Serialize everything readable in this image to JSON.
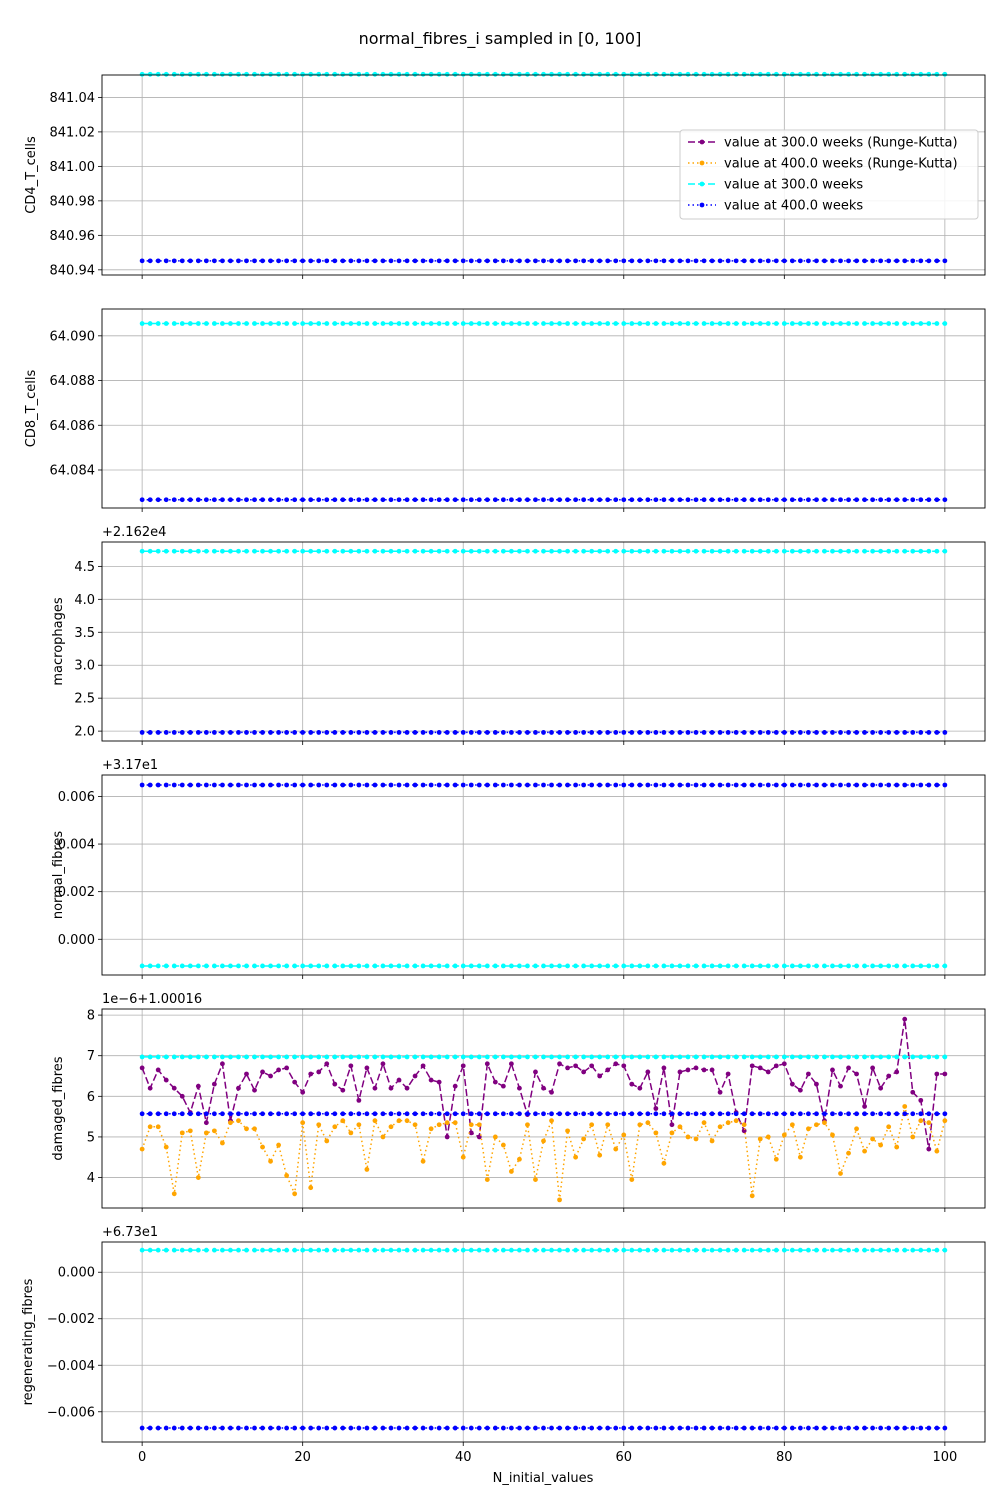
{
  "chart_data": {
    "type": "line",
    "title": "normal_fibres_i sampled in [0, 100]",
    "xlabel": "N_initial_values",
    "xlim": [
      -5,
      105
    ],
    "x_ticks": [
      0,
      20,
      40,
      60,
      80,
      100
    ],
    "x_tick_labels": [
      "0",
      "20",
      "40",
      "60",
      "80",
      "100"
    ],
    "x_points": {
      "start": 0,
      "end": 100,
      "count": 101
    },
    "grid": true,
    "legend": {
      "placement": "upper-right of first panel",
      "entries": [
        {
          "label": "value at 300.0 weeks (Runge-Kutta)",
          "color": "#800080",
          "dash": "dashed",
          "marker": "circle"
        },
        {
          "label": "value at 400.0 weeks (Runge-Kutta)",
          "color": "#ffa500",
          "dash": "dotted",
          "marker": "circle"
        },
        {
          "label": "value at 300.0 weeks",
          "color": "#00ffff",
          "dash": "dashed",
          "marker": "circle"
        },
        {
          "label": "value at 400.0 weeks",
          "color": "#0000ff",
          "dash": "dotted",
          "marker": "circle"
        }
      ]
    },
    "panels": [
      {
        "ylabel": "CD4_T_cells",
        "offset": "",
        "ylim": [
          840.937,
          841.053
        ],
        "y_ticks": [
          840.94,
          840.96,
          840.98,
          841.0,
          841.02,
          841.04
        ],
        "y_tick_labels": [
          "840.94",
          "840.96",
          "840.98",
          "841.00",
          "841.02",
          "841.04"
        ],
        "series": [
          {
            "color": "#00ffff",
            "dash": "dashed",
            "constant": 841.0534
          },
          {
            "color": "#0000ff",
            "dash": "dotted",
            "constant": 840.9452
          }
        ]
      },
      {
        "ylabel": "CD8_T_cells",
        "offset": "",
        "ylim": [
          64.0823,
          64.0912
        ],
        "y_ticks": [
          64.084,
          64.086,
          64.088,
          64.09
        ],
        "y_tick_labels": [
          "64.084",
          "64.086",
          "64.088",
          "64.090"
        ],
        "series": [
          {
            "color": "#00ffff",
            "dash": "dashed",
            "constant": 64.09055
          },
          {
            "color": "#0000ff",
            "dash": "dotted",
            "constant": 64.08267
          }
        ]
      },
      {
        "ylabel": "macrophages",
        "offset": "+2.162e4",
        "ylim": [
          1.85,
          4.87
        ],
        "y_ticks": [
          2.0,
          2.5,
          3.0,
          3.5,
          4.0,
          4.5
        ],
        "y_tick_labels": [
          "2.0",
          "2.5",
          "3.0",
          "3.5",
          "4.0",
          "4.5"
        ],
        "series": [
          {
            "color": "#00ffff",
            "dash": "dashed",
            "constant": 4.73
          },
          {
            "color": "#0000ff",
            "dash": "dotted",
            "constant": 1.98
          }
        ]
      },
      {
        "ylabel": "normal_fibres",
        "offset": "+3.17e1",
        "ylim": [
          -0.0015,
          0.0069
        ],
        "y_ticks": [
          0.0,
          0.002,
          0.004,
          0.006
        ],
        "y_tick_labels": [
          "0.000",
          "0.002",
          "0.004",
          "0.006"
        ],
        "series": [
          {
            "color": "#00ffff",
            "dash": "dashed",
            "constant": -0.00112
          },
          {
            "color": "#0000ff",
            "dash": "dotted",
            "constant": 0.00648
          }
        ]
      },
      {
        "ylabel": "damaged_fibres",
        "offset": "1e−6+1.00016",
        "ylim": [
          3.25,
          8.15
        ],
        "y_ticks": [
          4,
          5,
          6,
          7,
          8
        ],
        "y_tick_labels": [
          "4",
          "5",
          "6",
          "7",
          "8"
        ],
        "series": [
          {
            "color": "#800080",
            "dash": "dashed",
            "values": [
              6.7,
              6.2,
              6.65,
              6.4,
              6.2,
              6.0,
              5.6,
              6.25,
              5.35,
              6.3,
              6.8,
              5.4,
              6.2,
              6.55,
              6.15,
              6.6,
              6.5,
              6.65,
              6.7,
              6.35,
              6.1,
              6.55,
              6.6,
              6.8,
              6.3,
              6.15,
              6.75,
              5.9,
              6.7,
              6.2,
              6.8,
              6.2,
              6.4,
              6.2,
              6.5,
              6.75,
              6.4,
              6.35,
              5.0,
              6.25,
              6.75,
              5.1,
              5.0,
              6.8,
              6.35,
              6.25,
              6.8,
              6.2,
              5.55,
              6.6,
              6.2,
              6.1,
              6.8,
              6.7,
              6.75,
              6.6,
              6.75,
              6.5,
              6.65,
              6.8,
              6.75,
              6.3,
              6.2,
              6.6,
              5.7,
              6.7,
              5.3,
              6.6,
              6.65,
              6.7,
              6.65,
              6.65,
              6.1,
              6.55,
              5.6,
              5.15,
              6.75,
              6.7,
              6.6,
              6.75,
              6.8,
              6.3,
              6.15,
              6.55,
              6.3,
              5.4,
              6.65,
              6.25,
              6.7,
              6.55,
              5.75,
              6.7,
              6.2,
              6.5,
              6.6,
              7.9,
              6.1,
              5.9,
              4.7,
              6.55,
              6.55
            ]
          },
          {
            "color": "#ffa500",
            "dash": "dotted",
            "values": [
              4.7,
              5.25,
              5.25,
              4.75,
              3.6,
              5.1,
              5.15,
              4.0,
              5.1,
              5.15,
              4.85,
              5.35,
              5.4,
              5.2,
              5.2,
              4.75,
              4.4,
              4.8,
              4.05,
              3.6,
              5.35,
              3.75,
              5.3,
              4.9,
              5.25,
              5.4,
              5.1,
              5.3,
              4.2,
              5.4,
              5.0,
              5.25,
              5.4,
              5.4,
              5.3,
              4.4,
              5.2,
              5.3,
              5.35,
              5.35,
              4.5,
              5.3,
              5.3,
              3.95,
              5.0,
              4.8,
              4.15,
              4.45,
              5.3,
              3.95,
              4.9,
              5.4,
              3.45,
              5.15,
              4.5,
              4.95,
              5.3,
              4.55,
              5.3,
              4.7,
              5.05,
              3.95,
              5.3,
              5.35,
              5.1,
              4.35,
              5.1,
              5.25,
              5.0,
              4.95,
              5.35,
              4.9,
              5.25,
              5.35,
              5.4,
              5.3,
              3.55,
              4.95,
              5.0,
              4.45,
              5.05,
              5.3,
              4.5,
              5.2,
              5.3,
              5.35,
              5.05,
              4.1,
              4.6,
              5.2,
              4.65,
              4.95,
              4.8,
              5.25,
              4.75,
              5.75,
              5.0,
              5.4,
              5.35,
              4.65,
              5.4
            ]
          },
          {
            "color": "#00ffff",
            "dash": "dashed",
            "constant": 6.97
          },
          {
            "color": "#0000ff",
            "dash": "dotted",
            "constant": 5.57
          }
        ]
      },
      {
        "ylabel": "regenerating_fibres",
        "offset": "+6.73e1",
        "ylim": [
          -0.0073,
          0.0013
        ],
        "y_ticks": [
          -0.006,
          -0.004,
          -0.002,
          0.0
        ],
        "y_tick_labels": [
          "−0.006",
          "−0.004",
          "−0.002",
          "0.000"
        ],
        "series": [
          {
            "color": "#00ffff",
            "dash": "dashed",
            "constant": 0.00095
          },
          {
            "color": "#0000ff",
            "dash": "dotted",
            "constant": -0.0067
          }
        ]
      }
    ]
  }
}
